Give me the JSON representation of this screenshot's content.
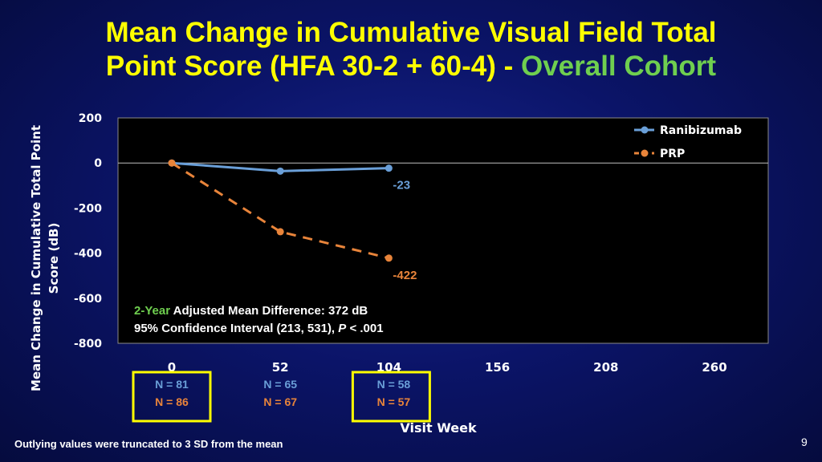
{
  "title": {
    "line1": "Mean Change in Cumulative Visual Field Total",
    "line2_main": "Point Score (HFA 30-2 + 60-4)",
    "line2_sep": " - ",
    "line2_accent": "Overall Cohort"
  },
  "chart_data": {
    "type": "line",
    "xlabel": "Visit Week",
    "ylabel": "Mean Change in Cumulative Total Point Score (dB)",
    "ylim": [
      -800,
      200
    ],
    "xlim": [
      0,
      260
    ],
    "y_ticks": [
      200,
      0,
      -200,
      -400,
      -600,
      -800
    ],
    "x_ticks": [
      0,
      52,
      104,
      156,
      208,
      260
    ],
    "legend_position": "top-right",
    "series": [
      {
        "name": "Ranibizumab",
        "color": "#6a9fd8",
        "style": "solid",
        "x": [
          0,
          52,
          104
        ],
        "y": [
          0,
          -36,
          -23
        ],
        "end_label": "-23"
      },
      {
        "name": "PRP",
        "color": "#e8843a",
        "style": "dashed",
        "x": [
          0,
          52,
          104
        ],
        "y": [
          0,
          -305,
          -422
        ],
        "end_label": "-422"
      }
    ],
    "annotation": {
      "line1_prefix": "2-Year",
      "line1_rest": " Adjusted Mean Difference: 372 dB",
      "line2_prefix": "95% Confidence Interval (213, 531), ",
      "line2_p": "P",
      "line2_rest": " < .001"
    },
    "n_counts": [
      {
        "week": 0,
        "ranibizumab": "N = 81",
        "prp": "N = 86",
        "highlighted": true
      },
      {
        "week": 52,
        "ranibizumab": "N = 65",
        "prp": "N = 67",
        "highlighted": false
      },
      {
        "week": 104,
        "ranibizumab": "N = 58",
        "prp": "N = 57",
        "highlighted": true
      }
    ]
  },
  "footnote": "Outlying values were truncated to 3 SD from the mean",
  "page_number": "9"
}
